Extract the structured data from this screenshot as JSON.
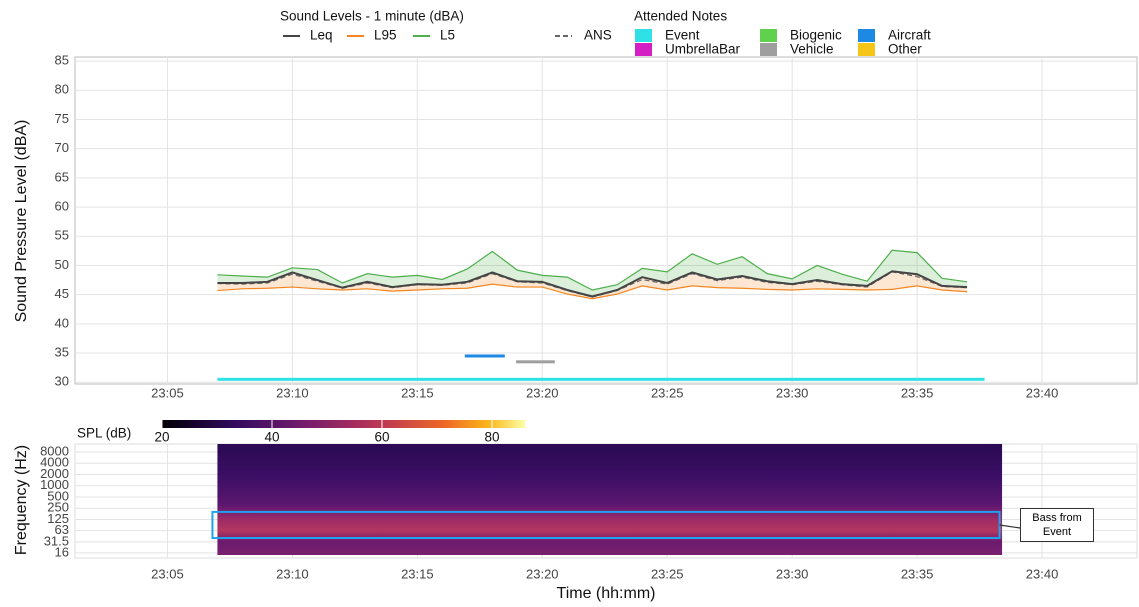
{
  "chart_data": [
    {
      "type": "line",
      "legend_title": "Sound Levels - 1 minute (dBA)",
      "notes_title": "Attended Notes",
      "y_label": "Sound Pressure Level (dBA)",
      "x": [
        1387,
        1388,
        1389,
        1390,
        1391,
        1392,
        1393,
        1394,
        1395,
        1396,
        1397,
        1398,
        1399,
        1400,
        1401,
        1402,
        1403,
        1404,
        1405,
        1406,
        1407,
        1408,
        1409,
        1410,
        1411,
        1412,
        1413,
        1414,
        1415,
        1416,
        1417
      ],
      "series": [
        {
          "name": "Leq",
          "color": "#444444",
          "values": [
            47,
            47,
            47.2,
            48.8,
            47.5,
            46.2,
            47.2,
            46.3,
            46.8,
            46.7,
            47.2,
            48.8,
            47.3,
            47.2,
            45.8,
            44.7,
            45.8,
            48,
            47,
            48.8,
            47.6,
            48.2,
            47.3,
            46.8,
            47.5,
            46.8,
            46.5,
            49,
            48.5,
            46.5,
            46.3
          ]
        },
        {
          "name": "L95",
          "color": "#f5861f",
          "values": [
            45.7,
            46,
            46.1,
            46.3,
            46,
            45.8,
            46,
            45.6,
            45.8,
            46,
            46.1,
            46.8,
            46.3,
            46.3,
            45.1,
            44.3,
            45.1,
            46.5,
            45.8,
            46.5,
            46.2,
            46.1,
            45.9,
            45.8,
            46,
            45.9,
            45.8,
            45.9,
            46.5,
            45.8,
            45.5
          ]
        },
        {
          "name": "L5",
          "color": "#4daf4a",
          "values": [
            48.4,
            48.2,
            48,
            49.6,
            49.3,
            47,
            48.6,
            48,
            48.3,
            47.6,
            49.4,
            52.4,
            49.2,
            48.3,
            48,
            45.8,
            46.7,
            49.5,
            48.9,
            52,
            50.2,
            51.5,
            48.6,
            47.7,
            50,
            48.5,
            47.3,
            52.6,
            52.2,
            47.8,
            47.2
          ]
        },
        {
          "name": "ANS",
          "color": "#666666",
          "dashed": true,
          "values": [
            46.9,
            46.8,
            47,
            48.5,
            47.3,
            46.1,
            47,
            46.2,
            46.7,
            46.6,
            47,
            48.6,
            47.2,
            47,
            45.7,
            44.6,
            45.7,
            47.6,
            46.8,
            48.6,
            47.4,
            48,
            47.1,
            46.7,
            47.3,
            46.7,
            46.3,
            48.9,
            48.1,
            46.4,
            46.2
          ]
        }
      ],
      "notes": [
        {
          "name": "Event",
          "color": "#2fe0e6",
          "start": 1387,
          "end": 1417.7,
          "level": 30.5
        },
        {
          "name": "UmbrellaBar",
          "color": "#d41fc4",
          "start": null,
          "end": null,
          "level": null
        },
        {
          "name": "Biogenic",
          "color": "#5fd14c",
          "start": null,
          "end": null,
          "level": null
        },
        {
          "name": "Vehicle",
          "color": "#9e9e9e",
          "start": 1398.95,
          "end": 1400.5,
          "level": 33.5
        },
        {
          "name": "Aircraft",
          "color": "#1e88e5",
          "start": 1396.9,
          "end": 1398.5,
          "level": 34.5
        },
        {
          "name": "Other",
          "color": "#f5c518",
          "start": null,
          "end": null,
          "level": null
        }
      ],
      "xlim": [
        1381.3,
        1423.8
      ],
      "xticks": [
        {
          "value": 1385,
          "label": "23:05"
        },
        {
          "value": 1390,
          "label": "23:10"
        },
        {
          "value": 1395,
          "label": "23:15"
        },
        {
          "value": 1400,
          "label": "23:20"
        },
        {
          "value": 1405,
          "label": "23:25"
        },
        {
          "value": 1410,
          "label": "23:30"
        },
        {
          "value": 1415,
          "label": "23:35"
        },
        {
          "value": 1420,
          "label": "23:40"
        }
      ],
      "ylim": [
        29.7,
        85.7
      ],
      "yticks": [
        30,
        35,
        40,
        45,
        50,
        55,
        60,
        65,
        70,
        75,
        80,
        85
      ],
      "grid": true
    },
    {
      "type": "spectrogram",
      "colorbar_label": "SPL (dB)",
      "clim": [
        20,
        86
      ],
      "cticks": [
        20,
        40,
        60,
        80
      ],
      "x_label": "Time (hh:mm)",
      "y_label": "Frequency (Hz)",
      "time_range": [
        1387,
        1418.4
      ],
      "log_y": true,
      "xlim": [
        1381.3,
        1423.8
      ],
      "xticks": [
        {
          "value": 1385,
          "label": "23:05"
        },
        {
          "value": 1390,
          "label": "23:10"
        },
        {
          "value": 1395,
          "label": "23:15"
        },
        {
          "value": 1400,
          "label": "23:20"
        },
        {
          "value": 1405,
          "label": "23:25"
        },
        {
          "value": 1410,
          "label": "23:30"
        },
        {
          "value": 1415,
          "label": "23:35"
        },
        {
          "value": 1420,
          "label": "23:40"
        }
      ],
      "ylim": [
        11.7,
        13100
      ],
      "yticks": [
        16,
        31.5,
        63,
        125,
        250,
        500,
        1000,
        2000,
        4000,
        8000
      ],
      "annotation": {
        "text": "Bass from Event",
        "time": [
          1386.8,
          1418.3
        ],
        "freq": [
          40,
          200
        ]
      },
      "grid": true
    }
  ]
}
